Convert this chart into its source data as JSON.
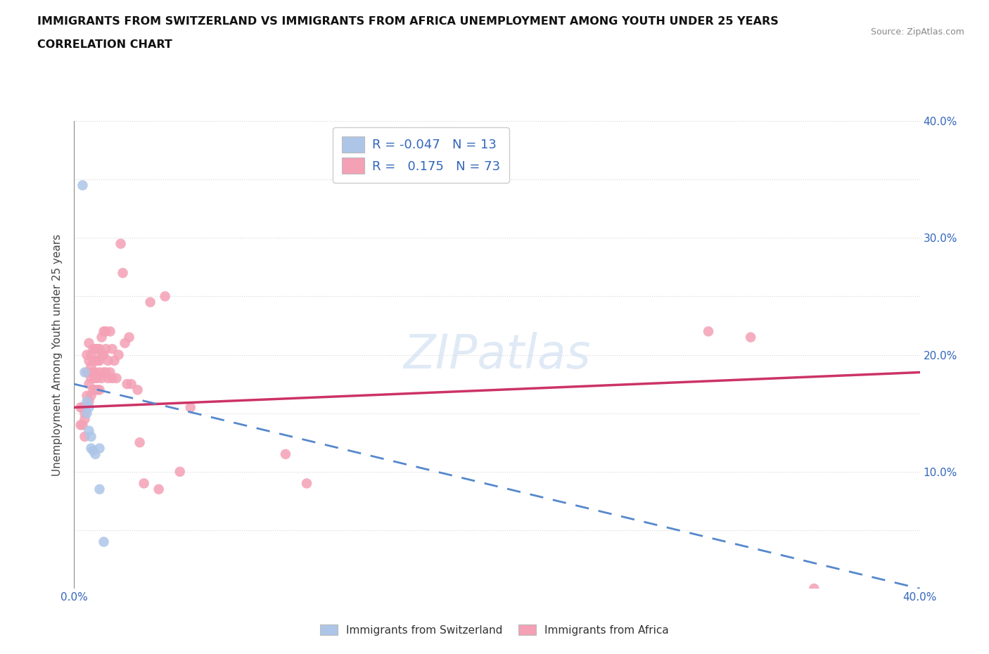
{
  "title_line1": "IMMIGRANTS FROM SWITZERLAND VS IMMIGRANTS FROM AFRICA UNEMPLOYMENT AMONG YOUTH UNDER 25 YEARS",
  "title_line2": "CORRELATION CHART",
  "source": "Source: ZipAtlas.com",
  "ylabel": "Unemployment Among Youth under 25 years",
  "xlim": [
    0.0,
    0.4
  ],
  "ylim": [
    0.0,
    0.4
  ],
  "grid_color": "#cccccc",
  "background_color": "#ffffff",
  "watermark_text": "ZIPatlas",
  "r_switzerland": -0.047,
  "n_switzerland": 13,
  "r_africa": 0.175,
  "n_africa": 73,
  "switzerland_color": "#adc6e8",
  "africa_color": "#f4a0b5",
  "trend_switzerland_color": "#5588cc",
  "trend_africa_color": "#cc3366",
  "swiss_scatter_x": [
    0.004,
    0.005,
    0.006,
    0.006,
    0.007,
    0.007,
    0.008,
    0.008,
    0.009,
    0.01,
    0.012,
    0.012,
    0.014
  ],
  "swiss_scatter_y": [
    0.345,
    0.185,
    0.16,
    0.15,
    0.155,
    0.135,
    0.13,
    0.12,
    0.118,
    0.115,
    0.12,
    0.085,
    0.04
  ],
  "africa_scatter_x": [
    0.003,
    0.003,
    0.004,
    0.004,
    0.005,
    0.005,
    0.005,
    0.005,
    0.006,
    0.006,
    0.006,
    0.007,
    0.007,
    0.007,
    0.007,
    0.008,
    0.008,
    0.008,
    0.008,
    0.009,
    0.009,
    0.009,
    0.009,
    0.01,
    0.01,
    0.01,
    0.01,
    0.01,
    0.011,
    0.011,
    0.011,
    0.011,
    0.012,
    0.012,
    0.012,
    0.012,
    0.013,
    0.013,
    0.013,
    0.014,
    0.014,
    0.014,
    0.015,
    0.015,
    0.015,
    0.016,
    0.016,
    0.017,
    0.017,
    0.018,
    0.018,
    0.019,
    0.02,
    0.021,
    0.022,
    0.023,
    0.024,
    0.025,
    0.026,
    0.027,
    0.03,
    0.031,
    0.033,
    0.036,
    0.04,
    0.043,
    0.05,
    0.055,
    0.1,
    0.11,
    0.3,
    0.32,
    0.35
  ],
  "africa_scatter_y": [
    0.155,
    0.14,
    0.155,
    0.14,
    0.155,
    0.15,
    0.145,
    0.13,
    0.2,
    0.185,
    0.165,
    0.21,
    0.195,
    0.175,
    0.16,
    0.2,
    0.19,
    0.18,
    0.165,
    0.205,
    0.195,
    0.185,
    0.17,
    0.205,
    0.195,
    0.185,
    0.18,
    0.17,
    0.205,
    0.195,
    0.18,
    0.17,
    0.205,
    0.195,
    0.185,
    0.17,
    0.215,
    0.2,
    0.18,
    0.22,
    0.2,
    0.185,
    0.22,
    0.205,
    0.185,
    0.195,
    0.18,
    0.22,
    0.185,
    0.205,
    0.18,
    0.195,
    0.18,
    0.2,
    0.295,
    0.27,
    0.21,
    0.175,
    0.215,
    0.175,
    0.17,
    0.125,
    0.09,
    0.245,
    0.085,
    0.25,
    0.1,
    0.155,
    0.115,
    0.09,
    0.22,
    0.215,
    0.0
  ],
  "swiss_trend_x0": 0.0,
  "swiss_trend_y0": 0.175,
  "swiss_trend_x1": 0.4,
  "swiss_trend_y1": 0.0,
  "africa_trend_x0": 0.0,
  "africa_trend_y0": 0.155,
  "africa_trend_x1": 0.4,
  "africa_trend_y1": 0.185
}
